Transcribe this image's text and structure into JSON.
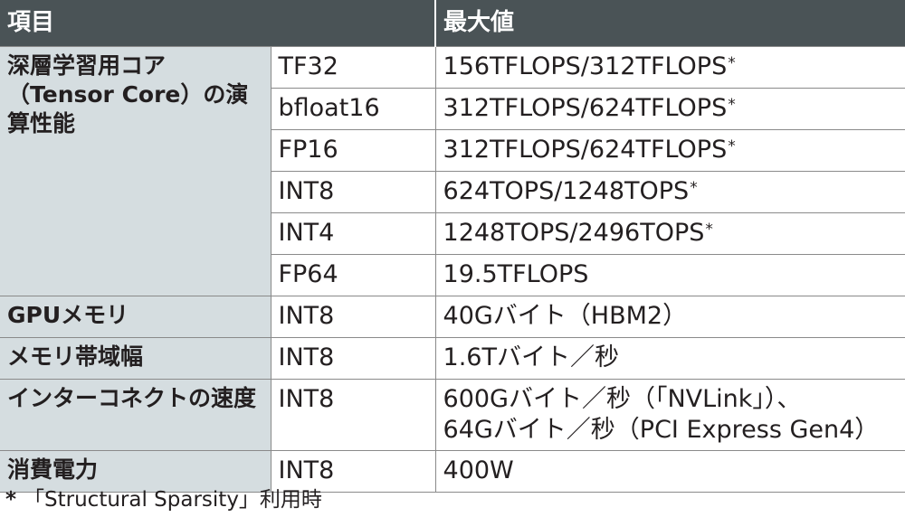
{
  "table": {
    "headers": [
      "項目",
      "",
      "最大値"
    ],
    "rows": [
      {
        "item": "深層学習用コア（Tensor Core）の演算性能",
        "type": "TF32",
        "value": "156TFLOPS/312TFLOPS",
        "mark": "*"
      },
      {
        "item": "",
        "type": "bfloat16",
        "value": "312TFLOPS/624TFLOPS",
        "mark": "*"
      },
      {
        "item": "",
        "type": "FP16",
        "value": "312TFLOPS/624TFLOPS",
        "mark": "*"
      },
      {
        "item": "",
        "type": "INT8",
        "value": "624TOPS/1248TOPS",
        "mark": "*"
      },
      {
        "item": "",
        "type": "INT4",
        "value": "1248TOPS/2496TOPS",
        "mark": "*"
      },
      {
        "item": "",
        "type": "FP64",
        "value": "19.5TFLOPS",
        "mark": ""
      },
      {
        "item": "GPUメモリ",
        "type": "INT8",
        "value": "40Gバイト（HBM2）",
        "mark": ""
      },
      {
        "item": "メモリ帯域幅",
        "type": "INT8",
        "value": "1.6Tバイト／秒",
        "mark": ""
      },
      {
        "item": "インターコネクトの速度",
        "type": "INT8",
        "value": "600Gバイト／秒（「NVLink」）、",
        "value2": "64Gバイト／秒（PCI Express Gen4）",
        "mark": ""
      },
      {
        "item": "消費電力",
        "type": "INT8",
        "value": "400W",
        "mark": ""
      }
    ]
  },
  "footnote": {
    "mark": "*",
    "text": "「Structural Sparsity」利用時"
  }
}
